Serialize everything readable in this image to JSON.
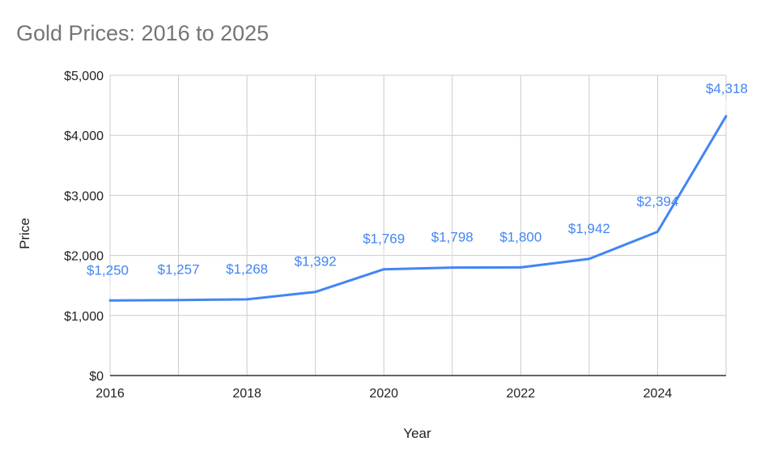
{
  "chart_data": {
    "type": "line",
    "title": "Gold Prices: 2016 to 2025",
    "xlabel": "Year",
    "ylabel": "Price",
    "x": [
      2016,
      2017,
      2018,
      2019,
      2020,
      2021,
      2022,
      2023,
      2024,
      2025
    ],
    "series": [
      {
        "values": [
          1250,
          1257,
          1268,
          1392,
          1769,
          1798,
          1800,
          1942,
          2394,
          4318
        ],
        "data_labels": [
          "$1,250",
          "$1,257",
          "$1,268",
          "$1,392",
          "$1,769",
          "$1,798",
          "$1,800",
          "$1,942",
          "$2,394",
          "$4,318"
        ],
        "color": "#4285f4"
      }
    ],
    "xlim": [
      2016,
      2025
    ],
    "ylim": [
      0,
      5000
    ],
    "x_ticks": [
      2016,
      2018,
      2020,
      2022,
      2024
    ],
    "x_tick_labels": [
      "2016",
      "2018",
      "2020",
      "2022",
      "2024"
    ],
    "y_ticks": [
      0,
      1000,
      2000,
      3000,
      4000,
      5000
    ],
    "y_tick_labels": [
      "$0",
      "$1,000",
      "$2,000",
      "$3,000",
      "$4,000",
      "$5,000"
    ],
    "grid": true,
    "legend": "none"
  }
}
